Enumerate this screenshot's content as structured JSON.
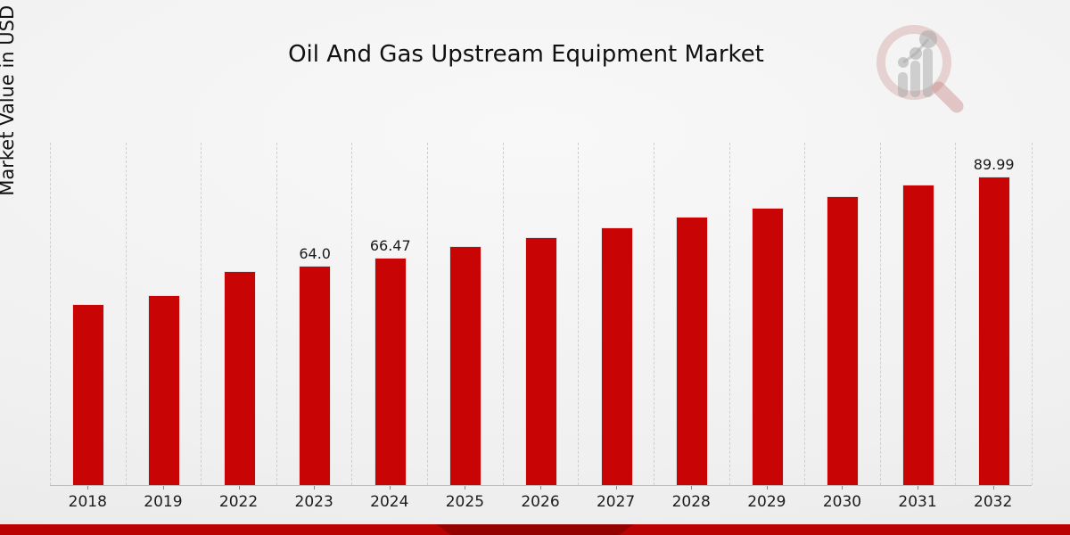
{
  "chart_data": {
    "type": "bar",
    "title": "Oil And Gas Upstream Equipment Market",
    "xlabel": "",
    "ylabel": "Market Value in USD Billion",
    "categories": [
      "2018",
      "2019",
      "2022",
      "2023",
      "2024",
      "2025",
      "2026",
      "2027",
      "2028",
      "2029",
      "2030",
      "2031",
      "2032"
    ],
    "values": [
      52.9,
      55.5,
      62.5,
      64.0,
      66.47,
      69.7,
      72.3,
      75.2,
      78.3,
      80.9,
      84.3,
      87.7,
      89.99
    ],
    "bar_labels": {
      "2023": "64.0",
      "2024": "66.47",
      "2032": "89.99"
    },
    "ylim": [
      0,
      100
    ],
    "grid": "vertical dashed separators between categories",
    "legend": "none",
    "y_tick_labels": "none"
  },
  "colors": {
    "bar_red": "#c80404",
    "footer_band_red": "#bb0202",
    "label_text": "#1a1a1a",
    "separator_gray": "#cfcfcf"
  },
  "logo": {
    "name": "magnifier-bar-chart-logo"
  }
}
